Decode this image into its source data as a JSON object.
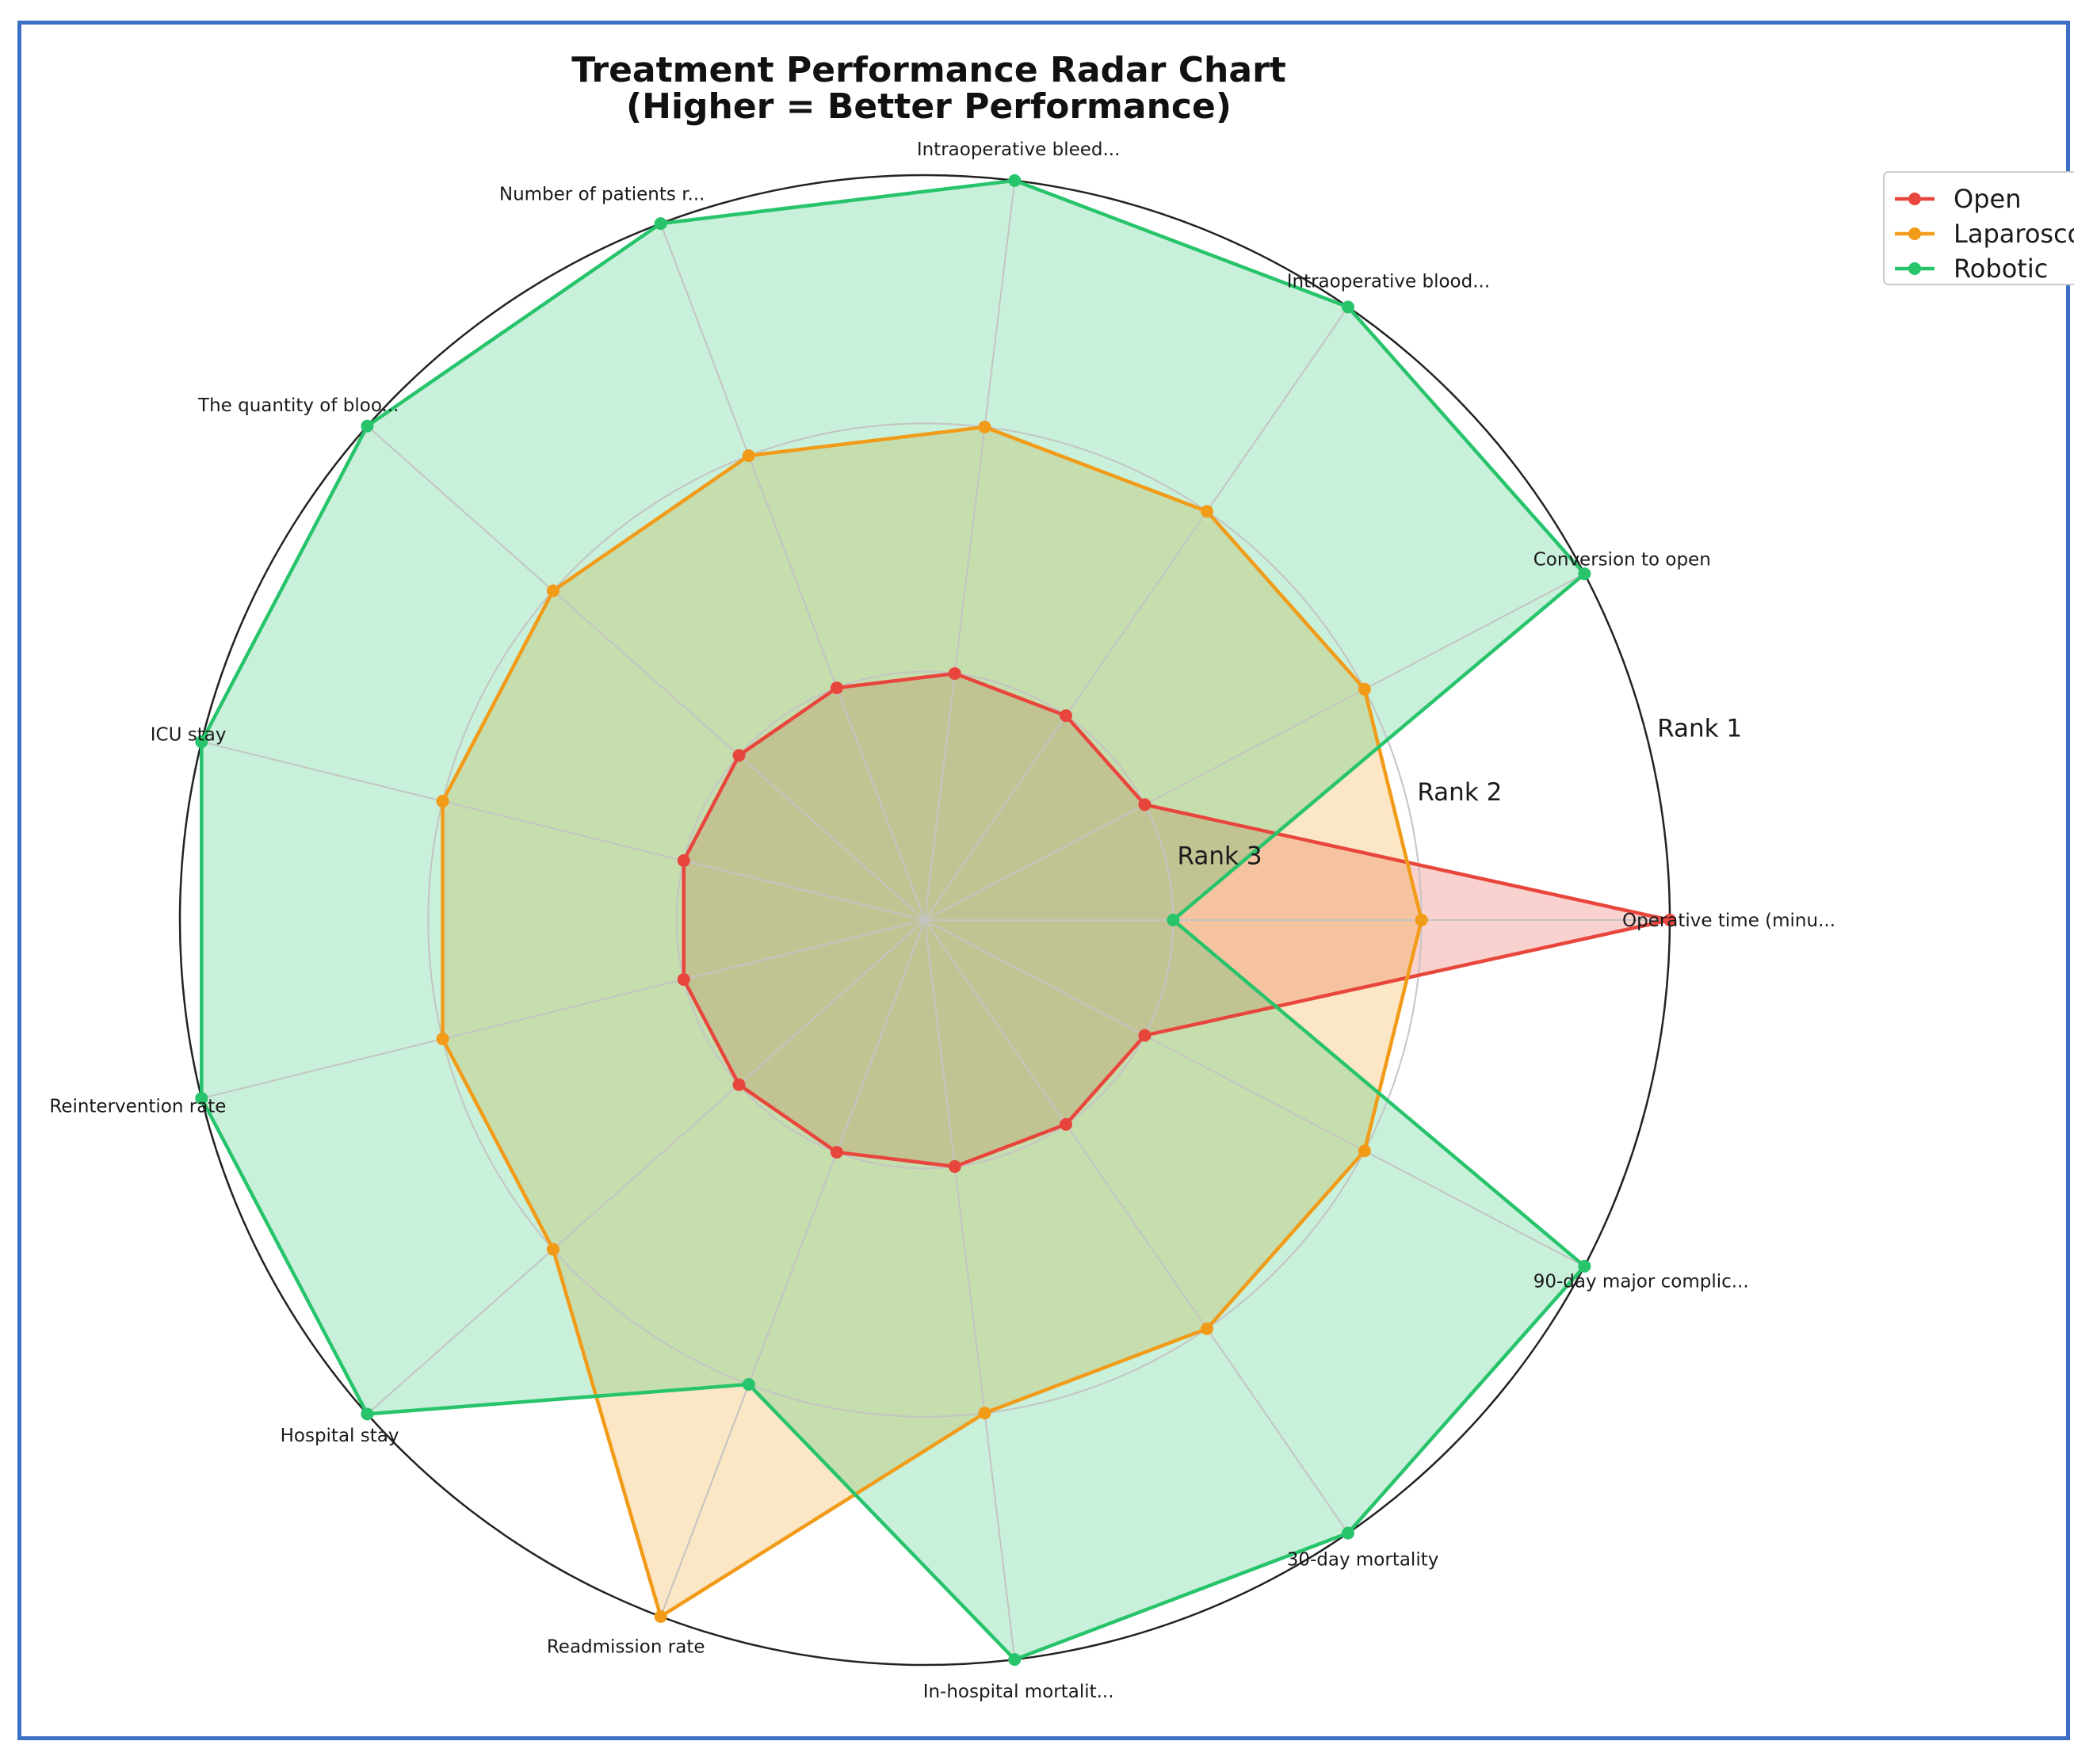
{
  "chart_data": {
    "type": "radar",
    "title": "Treatment Performance Radar Chart",
    "subtitle": "(Higher = Better Performance)",
    "categories": [
      "Operative time (minu...",
      "Conversion to open",
      "Intraoperative blood...",
      "Intraoperative bleed...",
      "Number of patients r...",
      "The quantity of bloo...",
      "ICU stay",
      "Reintervention rate",
      "Hospital stay",
      "Readmission rate",
      "In-hospital mortalit...",
      "30-day mortality",
      "90-day major complic..."
    ],
    "radial_tick_labels": [
      "Rank 3",
      "Rank 2",
      "Rank 1"
    ],
    "radial_ticks": [
      1,
      2,
      3
    ],
    "rmax": 3,
    "series": [
      {
        "name": "Open",
        "color": "#e8463c",
        "fill": "#f6c9c6",
        "values": [
          3,
          1,
          1,
          1,
          1,
          1,
          1,
          1,
          1,
          1,
          1,
          1,
          1
        ]
      },
      {
        "name": "Laparoscopic",
        "color": "#f19b18",
        "fill": "#fbe3be",
        "values": [
          2,
          2,
          2,
          2,
          2,
          2,
          2,
          2,
          2,
          3,
          2,
          2,
          2
        ]
      },
      {
        "name": "Robotic",
        "color": "#27c46b",
        "fill": "#c9f0da",
        "values": [
          1,
          3,
          3,
          3,
          3,
          3,
          3,
          3,
          3,
          2,
          3,
          3,
          3
        ]
      }
    ],
    "legend": {
      "position": "top-right",
      "entries": [
        "Open",
        "Laparosco",
        "Robotic"
      ]
    },
    "grid": true
  }
}
